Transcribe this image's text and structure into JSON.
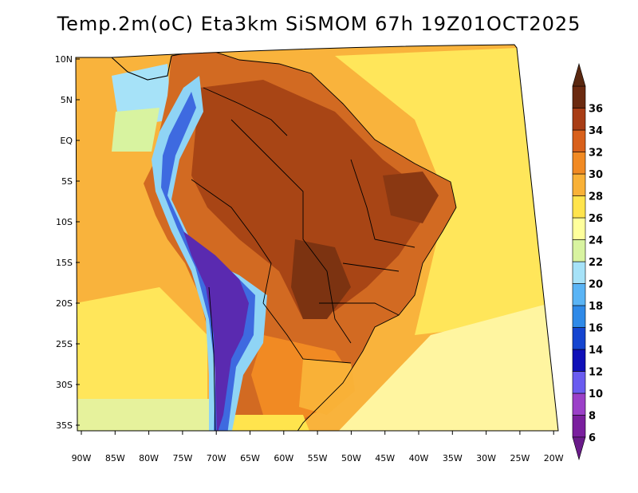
{
  "title": "Temp.2m(oC) Eta3km SiSMOM 67h 19Z01OCT2025",
  "lat_labels": [
    "10N",
    "5N",
    "EQ",
    "5S",
    "10S",
    "15S",
    "20S",
    "25S",
    "30S",
    "35S"
  ],
  "lon_labels": [
    "90W",
    "85W",
    "80W",
    "75W",
    "70W",
    "65W",
    "60W",
    "55W",
    "50W",
    "45W",
    "40W",
    "35W",
    "30W",
    "25W",
    "20W"
  ],
  "colorbar": {
    "labels": [
      "6",
      "8",
      "10",
      "12",
      "14",
      "16",
      "18",
      "20",
      "22",
      "24",
      "26",
      "28",
      "30",
      "32",
      "34",
      "36"
    ],
    "colors": [
      "#7a1f9e",
      "#9b40c8",
      "#6a5cf0",
      "#1010b8",
      "#1545d0",
      "#2f8ae8",
      "#5ab4f5",
      "#a6e2f8",
      "#d8f3a0",
      "#ffff9c",
      "#ffe44d",
      "#f9b137",
      "#f18a23",
      "#d8601b",
      "#a83d16",
      "#6b2a10"
    ],
    "low_cap_color": "#6a1b8a",
    "high_cap_color": "#5a2810"
  },
  "fills": {
    "ocean_warm": "#f9b33c",
    "ocean_mid": "#ffe65a",
    "ocean_cool": "#fff5a0",
    "pacific_south": "#e6f29c",
    "land_hot": "#c85a1c",
    "land_very_hot": "#9a3f14",
    "andes_cold": "#5a2ab0",
    "andes_blue": "#3e6ae0",
    "andes_light": "#8fd4f5",
    "boundary": "#000000"
  }
}
